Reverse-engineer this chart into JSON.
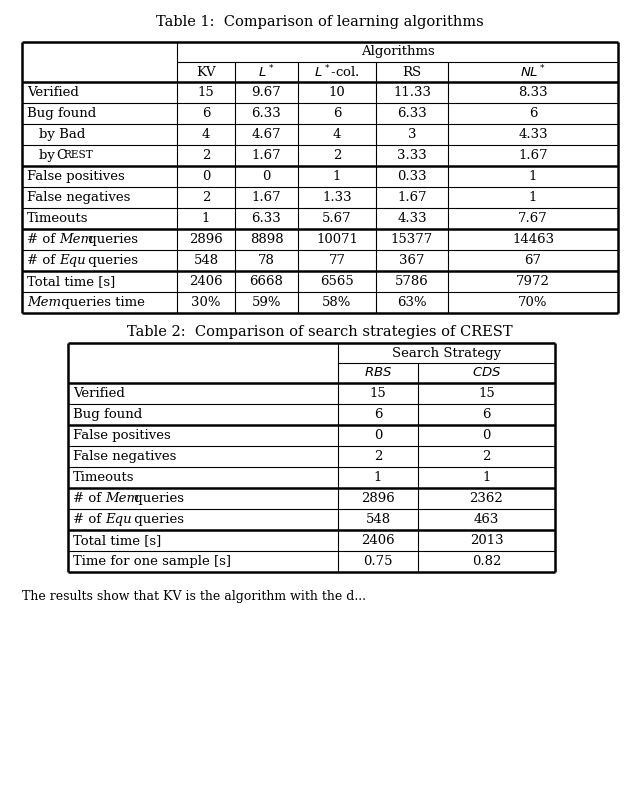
{
  "table1_title": "Table 1:  Comparison of learning algorithms",
  "table2_title": "Table 2:  Comparison of search strategies of CREST",
  "table1_col_headers_tex": [
    "KV",
    "$L^*$",
    "$L^*$-col.",
    "RS",
    "$NL^*$"
  ],
  "table1_rows": [
    [
      "Verified",
      "15",
      "9.67",
      "10",
      "11.33",
      "8.33"
    ],
    [
      "Bug found",
      "6",
      "6.33",
      "6",
      "6.33",
      "6"
    ],
    [
      "  by Bad",
      "4",
      "4.67",
      "4",
      "3",
      "4.33"
    ],
    [
      "  by Crest",
      "2",
      "1.67",
      "2",
      "3.33",
      "1.67"
    ],
    [
      "False positives",
      "0",
      "0",
      "1",
      "0.33",
      "1"
    ],
    [
      "False negatives",
      "2",
      "1.67",
      "1.33",
      "1.67",
      "1"
    ],
    [
      "Timeouts",
      "1",
      "6.33",
      "5.67",
      "4.33",
      "7.67"
    ],
    [
      "# of Mem queries",
      "2896",
      "8898",
      "10071",
      "15377",
      "14463"
    ],
    [
      "# of Equ queries",
      "548",
      "78",
      "77",
      "367",
      "67"
    ],
    [
      "Total time [s]",
      "2406",
      "6668",
      "6565",
      "5786",
      "7972"
    ],
    [
      "Mem queries time",
      "30%",
      "59%",
      "58%",
      "63%",
      "70%"
    ]
  ],
  "table1_group_separators": [
    4,
    7,
    9
  ],
  "table2_col_headers_tex": [
    "$RBS$",
    "$CDS$"
  ],
  "table2_rows": [
    [
      "Verified",
      "15",
      "15"
    ],
    [
      "Bug found",
      "6",
      "6"
    ],
    [
      "False positives",
      "0",
      "0"
    ],
    [
      "False negatives",
      "2",
      "2"
    ],
    [
      "Timeouts",
      "1",
      "1"
    ],
    [
      "# of Mem queries",
      "2896",
      "2362"
    ],
    [
      "# of Equ queries",
      "548",
      "463"
    ],
    [
      "Total time [s]",
      "2406",
      "2013"
    ],
    [
      "Time for one sample [s]",
      "0.75",
      "0.82"
    ]
  ],
  "table2_group_separators": [
    2,
    5,
    7
  ],
  "bg_color": "#ffffff",
  "text_color": "#000000",
  "bottom_text": "The results show that KV is the algorithm with the d..."
}
